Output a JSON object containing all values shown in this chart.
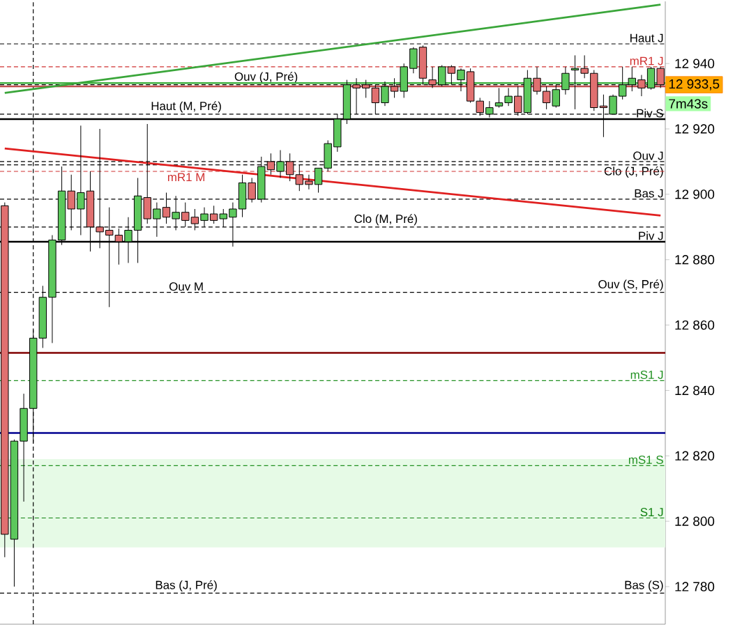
{
  "chart_data": {
    "type": "candlestick",
    "ylim": [
      12768.5,
      12959
    ],
    "tick_labels": "y",
    "categories": [
      null,
      null,
      null,
      null,
      null,
      null,
      null,
      null,
      null,
      null,
      null,
      null,
      null,
      null,
      null,
      null,
      null,
      null,
      null,
      null,
      null,
      null,
      null,
      null,
      null,
      null,
      null,
      null,
      null,
      null,
      null,
      null,
      null,
      null,
      null,
      null,
      null,
      null,
      null,
      null,
      null,
      null,
      null,
      null,
      null,
      null,
      null,
      null,
      null,
      null,
      null,
      null,
      null,
      null,
      null,
      null,
      null,
      null,
      null,
      null,
      null,
      null,
      null,
      null,
      null,
      null,
      null,
      null,
      null,
      null
    ],
    "yticks": [
      {
        "value": 12780,
        "label": "12 780"
      },
      {
        "value": 12800,
        "label": "12 800"
      },
      {
        "value": 12820,
        "label": "12 820"
      },
      {
        "value": 12840,
        "label": "12 840"
      },
      {
        "value": 12860,
        "label": "12 860"
      },
      {
        "value": 12880,
        "label": "12 880"
      },
      {
        "value": 12900,
        "label": "12 900"
      },
      {
        "value": 12920,
        "label": "12 920"
      },
      {
        "value": 12940,
        "label": "12 940"
      }
    ],
    "ohlc": [
      [
        12896.5,
        12897.5,
        12789,
        12796
      ],
      [
        12794.5,
        12825,
        12780,
        12824.5
      ],
      [
        12824.5,
        12839,
        12806,
        12834.5
      ],
      [
        12834.5,
        12858.5,
        12824,
        12856
      ],
      [
        12856,
        12872,
        12853,
        12868.5
      ],
      [
        12868.5,
        12887.5,
        12854.5,
        12886
      ],
      [
        12886,
        12908.5,
        12884.5,
        12901
      ],
      [
        12901,
        12906,
        12889,
        12895.5
      ],
      [
        12895.5,
        12921,
        12887.5,
        12900.5
      ],
      [
        12901,
        12907,
        12882.5,
        12890
      ],
      [
        12890,
        12920,
        12883.5,
        12888.5
      ],
      [
        12889,
        12896,
        12865.5,
        12887.5
      ],
      [
        12887.5,
        12889.5,
        12878.5,
        12885.5
      ],
      [
        12885.5,
        12893,
        12879,
        12889
      ],
      [
        12889,
        12905,
        12879,
        12899.5
      ],
      [
        12899,
        12921.5,
        12891,
        12892.5
      ],
      [
        12892.5,
        12897.5,
        12887,
        12895.5
      ],
      [
        12896,
        12900.5,
        12891,
        12893
      ],
      [
        12892.5,
        12899.5,
        12889,
        12894.5
      ],
      [
        12894.5,
        12897.5,
        12890,
        12892
      ],
      [
        12893,
        12895.5,
        12889,
        12891
      ],
      [
        12892,
        12896,
        12890,
        12894
      ],
      [
        12894,
        12896.5,
        12891,
        12892
      ],
      [
        12892.5,
        12895.5,
        12890,
        12894
      ],
      [
        12893,
        12897.5,
        12884,
        12895.5
      ],
      [
        12895.5,
        12906,
        12893,
        12903.5
      ],
      [
        12903.5,
        12905,
        12897.5,
        12898.5
      ],
      [
        12898.5,
        12911.5,
        12897.5,
        12908.5
      ],
      [
        12910,
        12912.5,
        12906,
        12907.5
      ],
      [
        12907,
        12913.5,
        12905,
        12910
      ],
      [
        12910,
        12912.5,
        12904,
        12906
      ],
      [
        12906,
        12909,
        12901,
        12903
      ],
      [
        12904,
        12906,
        12901.5,
        12903
      ],
      [
        12903,
        12908,
        12900.5,
        12908
      ],
      [
        12908,
        12916.5,
        12907,
        12915.5
      ],
      [
        12914.5,
        12924.5,
        12913,
        12923
      ],
      [
        12923,
        12935,
        12921.5,
        12933.5
      ],
      [
        12933.5,
        12935.5,
        12924.5,
        12932.5
      ],
      [
        12933.5,
        12935,
        12929.5,
        12932.5
      ],
      [
        12932.5,
        12933.5,
        12924.5,
        12928
      ],
      [
        12928,
        12934.5,
        12927,
        12933
      ],
      [
        12933,
        12935.5,
        12929.5,
        12931.5
      ],
      [
        12931.5,
        12940,
        12929.5,
        12939
      ],
      [
        12938.5,
        12945,
        12937,
        12944.5
      ],
      [
        12945,
        12945.5,
        12933.5,
        12935.5
      ],
      [
        12935,
        12939,
        12932.5,
        12933.5
      ],
      [
        12933.5,
        12939.5,
        12933,
        12939
      ],
      [
        12939,
        12939.5,
        12933.5,
        12937
      ],
      [
        12935,
        12938.5,
        12931.5,
        12938
      ],
      [
        12937.5,
        12938.5,
        12928,
        12928.5
      ],
      [
        12928.5,
        12929.5,
        12924,
        12925
      ],
      [
        12924.5,
        12928.5,
        12923.5,
        12926.5
      ],
      [
        12927,
        12932.5,
        12926.5,
        12928
      ],
      [
        12928,
        12932.5,
        12927,
        12930
      ],
      [
        12930,
        12933,
        12924,
        12925
      ],
      [
        12925,
        12938,
        12924.5,
        12935.5
      ],
      [
        12935.5,
        12939,
        12930.5,
        12931.5
      ],
      [
        12931.5,
        12933,
        12926,
        12928
      ],
      [
        12927,
        12933.5,
        12926.5,
        12932
      ],
      [
        12932,
        12939,
        12930.5,
        12937
      ],
      [
        12938,
        12942.5,
        12926,
        12938.5
      ],
      [
        12938.5,
        12942.5,
        12935.5,
        12937
      ],
      [
        12937,
        12938,
        12925.5,
        12926.5
      ],
      [
        12927,
        12930.5,
        12917.5,
        12926.5
      ],
      [
        12924.5,
        12930.5,
        12924.5,
        12930
      ],
      [
        12930,
        12939,
        12929,
        12933.5
      ],
      [
        12933.5,
        12939,
        12931.5,
        12935.5
      ],
      [
        12935,
        12936.5,
        12930,
        12932.5
      ],
      [
        12932.5,
        12939,
        12932,
        12938.5
      ],
      [
        12938.5,
        12939,
        12932.5,
        12933.5
      ]
    ],
    "colors": [
      "#e07070",
      "#5cc85c",
      "#5cc85c",
      "#5cc85c",
      "#5cc85c",
      "#5cc85c",
      "#5cc85c",
      "#e07070",
      "#5cc85c",
      "#e07070",
      "#e07070",
      "#e07070",
      "#e07070",
      "#5cc85c",
      "#5cc85c",
      "#e07070",
      "#5cc85c",
      "#e07070",
      "#5cc85c",
      "#e07070",
      "#e07070",
      "#5cc85c",
      "#e07070",
      "#5cc85c",
      "#5cc85c",
      "#5cc85c",
      "#e07070",
      "#5cc85c",
      "#e07070",
      "#5cc85c",
      "#e07070",
      "#e07070",
      "#e07070",
      "#5cc85c",
      "#5cc85c",
      "#5cc85c",
      "#5cc85c",
      "#e07070",
      "#e07070",
      "#e07070",
      "#5cc85c",
      "#e07070",
      "#5cc85c",
      "#5cc85c",
      "#e07070",
      "#e07070",
      "#5cc85c",
      "#e07070",
      "#5cc85c",
      "#e07070",
      "#e07070",
      "#5cc85c",
      "#5cc85c",
      "#5cc85c",
      "#e07070",
      "#5cc85c",
      "#e07070",
      "#e07070",
      "#5cc85c",
      "#5cc85c",
      "#5cc85c",
      "#e07070",
      "#e07070",
      "#e07070",
      "#5cc85c",
      "#5cc85c",
      "#5cc85c",
      "#e07070",
      "#5cc85c",
      "#e07070"
    ],
    "series": [
      {
        "type": "line",
        "color": "#3aa63a",
        "values": [
          12931,
          null,
          null,
          null,
          null,
          null,
          null,
          null,
          null,
          null,
          null,
          null,
          null,
          null,
          null,
          null,
          null,
          null,
          null,
          null,
          null,
          null,
          null,
          null,
          null,
          null,
          null,
          null,
          null,
          null,
          null,
          null,
          null,
          null,
          null,
          null,
          null,
          null,
          null,
          null,
          null,
          null,
          null,
          null,
          null,
          null,
          null,
          null,
          null,
          null,
          null,
          null,
          null,
          null,
          null,
          null,
          null,
          null,
          null,
          null,
          null,
          null,
          null,
          null,
          null,
          null,
          null,
          null,
          null,
          12958
        ]
      },
      {
        "type": "line",
        "color": "#e02020",
        "values": [
          12914,
          null,
          null,
          null,
          null,
          null,
          null,
          null,
          null,
          null,
          null,
          null,
          null,
          null,
          null,
          null,
          null,
          null,
          null,
          null,
          null,
          null,
          null,
          null,
          null,
          null,
          null,
          null,
          null,
          null,
          null,
          null,
          null,
          null,
          null,
          null,
          null,
          null,
          null,
          null,
          null,
          null,
          null,
          null,
          null,
          null,
          null,
          null,
          null,
          null,
          null,
          null,
          null,
          null,
          null,
          null,
          null,
          null,
          null,
          null,
          null,
          null,
          null,
          null,
          null,
          null,
          null,
          null,
          null,
          12893.5
        ]
      }
    ],
    "ref_lines": [
      {
        "axis": "y",
        "value": 12946,
        "label": "Haut J",
        "color": "#000000",
        "line_style": "dashed"
      },
      {
        "axis": "y",
        "value": 12939,
        "label": "mR1 J",
        "color": "#d03030",
        "line_style": "dashed"
      },
      {
        "axis": "y",
        "value": 12933.5,
        "label": "Ouv (J, Pré)",
        "color": "#000000",
        "line_style": "dashed"
      },
      {
        "axis": "y",
        "value": 12934,
        "color": "#40b040",
        "line_style": "solid"
      },
      {
        "axis": "y",
        "value": 12933,
        "color": "#c05050",
        "line_style": "solid"
      },
      {
        "axis": "y",
        "value": 12924.5,
        "label": "Haut (M, Pré)",
        "color": "#000000",
        "line_style": "dashed"
      },
      {
        "axis": "y",
        "value": 12923,
        "label": "Piv S",
        "color": "#000000",
        "line_style": "solid"
      },
      {
        "axis": "y",
        "value": 12910,
        "label": "Ouv J",
        "color": "#000000",
        "line_style": "dashed"
      },
      {
        "axis": "y",
        "value": 12909,
        "label": "Clo (J, Pré)",
        "color": "#000000",
        "line_style": "dashed"
      },
      {
        "axis": "y",
        "value": 12907,
        "label": "mR1 M",
        "color": "#d03030",
        "line_style": "dashed"
      },
      {
        "axis": "y",
        "value": 12898.5,
        "label": "Bas J",
        "color": "#000000",
        "line_style": "dashed"
      },
      {
        "axis": "y",
        "value": 12890,
        "label": "Clo (M, Pré)",
        "color": "#000000",
        "line_style": "dashed"
      },
      {
        "axis": "y",
        "value": 12885.5,
        "label": "Piv J",
        "color": "#000000",
        "line_style": "solid"
      },
      {
        "axis": "y",
        "value": 12870,
        "label": "Ouv M",
        "color": "#000000",
        "line_style": "dashed"
      },
      {
        "axis": "y",
        "value": 12851.5,
        "color": "#800000",
        "line_style": "solid"
      },
      {
        "axis": "y",
        "value": 12843,
        "label": "mS1 J",
        "color": "#209020",
        "line_style": "dashed"
      },
      {
        "axis": "y",
        "value": 12827,
        "color": "#000090",
        "line_style": "solid"
      },
      {
        "axis": "y",
        "value": 12817,
        "label": "mS1 S",
        "color": "#209020",
        "line_style": "dashed"
      },
      {
        "axis": "y",
        "value": 12801,
        "label": "S1 J",
        "color": "#108010",
        "line_style": "dashed"
      },
      {
        "axis": "y",
        "value": 12778,
        "label": "Bas (J, Pré)",
        "color": "#000000",
        "line_style": "dashed"
      }
    ],
    "bands": [
      {
        "axis": "y",
        "from": 12792,
        "to": 12819,
        "color": "#e6fae6"
      }
    ],
    "annotations": [
      "12 933,5",
      "7m43s",
      {
        "text": "Ouv (S, Pré)",
        "y": 12870
      },
      {
        "text": "Bas (S)",
        "y": 12778
      }
    ]
  }
}
